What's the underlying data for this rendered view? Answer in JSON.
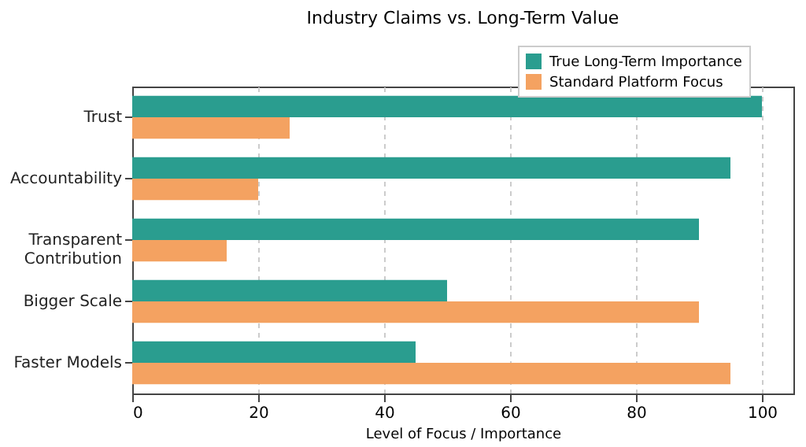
{
  "chart_data": {
    "type": "bar",
    "orientation": "horizontal",
    "title": "Industry Claims vs. Long-Term Value",
    "xlabel": "Level of Focus / Importance",
    "categories": [
      "Trust",
      "Accountability",
      "Transparent Contribution",
      "Bigger Scale",
      "Faster Models"
    ],
    "series": [
      {
        "name": "True Long-Term Importance",
        "color": "#2a9d8f",
        "values": [
          100,
          95,
          90,
          50,
          45
        ]
      },
      {
        "name": "Standard Platform Focus",
        "color": "#f4a261",
        "values": [
          25,
          20,
          15,
          90,
          95
        ]
      }
    ],
    "xlim": [
      0,
      105
    ],
    "xticks": [
      0,
      20,
      40,
      60,
      80,
      100
    ],
    "grid": "x",
    "legend": "top right"
  }
}
